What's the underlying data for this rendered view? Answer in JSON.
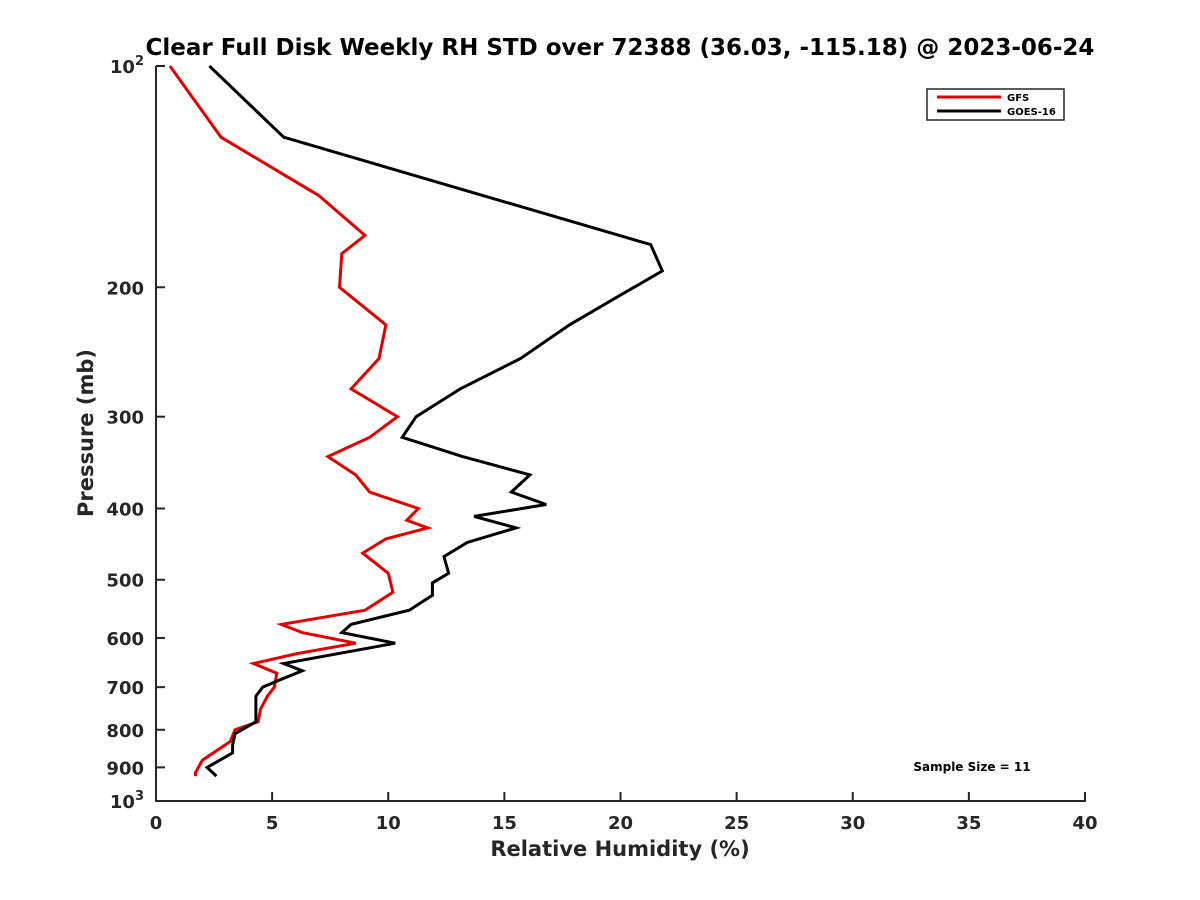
{
  "chart_data": {
    "type": "line",
    "title": "Clear Full Disk Weekly RH STD over 72388 (36.03, -115.18) @ 2023-06-24",
    "xlabel": "Relative Humidity (%)",
    "ylabel": "Pressure (mb)",
    "xlim": [
      0,
      40
    ],
    "ylim": [
      100,
      1000
    ],
    "y_scale": "log",
    "y_reversed": true,
    "grid": false,
    "legend_position": "top-right",
    "x_ticks": [
      "0",
      "5",
      "10",
      "15",
      "20",
      "25",
      "30",
      "35",
      "40"
    ],
    "y_ticks": [
      {
        "value": 100,
        "base": "10",
        "exp": "2"
      },
      {
        "value": 200,
        "label": "200"
      },
      {
        "value": 300,
        "label": "300"
      },
      {
        "value": 400,
        "label": "400"
      },
      {
        "value": 500,
        "label": "500"
      },
      {
        "value": 600,
        "label": "600"
      },
      {
        "value": 700,
        "label": "700"
      },
      {
        "value": 800,
        "label": "800"
      },
      {
        "value": 900,
        "label": "900"
      },
      {
        "value": 1000,
        "base": "10",
        "exp": "3"
      }
    ],
    "annotation": "Sample Size = 11",
    "series": [
      {
        "name": "GFS",
        "color": "#e00000",
        "points": [
          [
            0.6,
            100
          ],
          [
            2.8,
            125
          ],
          [
            7.0,
            150
          ],
          [
            9.0,
            170
          ],
          [
            8.0,
            180
          ],
          [
            7.9,
            200
          ],
          [
            9.9,
            225
          ],
          [
            9.6,
            250
          ],
          [
            8.4,
            275
          ],
          [
            10.4,
            300
          ],
          [
            9.2,
            320
          ],
          [
            7.4,
            340
          ],
          [
            8.6,
            360
          ],
          [
            9.2,
            380
          ],
          [
            11.3,
            400
          ],
          [
            10.8,
            415
          ],
          [
            11.7,
            425
          ],
          [
            9.9,
            440
          ],
          [
            8.9,
            460
          ],
          [
            10.0,
            490
          ],
          [
            10.2,
            520
          ],
          [
            9.0,
            550
          ],
          [
            5.4,
            575
          ],
          [
            6.3,
            590
          ],
          [
            8.6,
            610
          ],
          [
            6.1,
            630
          ],
          [
            4.2,
            650
          ],
          [
            5.2,
            670
          ],
          [
            5.1,
            700
          ],
          [
            4.8,
            720
          ],
          [
            4.5,
            750
          ],
          [
            4.4,
            780
          ],
          [
            3.4,
            800
          ],
          [
            3.2,
            830
          ],
          [
            2.0,
            880
          ],
          [
            1.7,
            915
          ],
          [
            1.7,
            925
          ]
        ]
      },
      {
        "name": "GOES-16",
        "color": "#000000",
        "points": [
          [
            2.3,
            100
          ],
          [
            5.5,
            125
          ],
          [
            21.3,
            175
          ],
          [
            21.8,
            190
          ],
          [
            20.0,
            205
          ],
          [
            17.8,
            225
          ],
          [
            15.7,
            250
          ],
          [
            13.1,
            275
          ],
          [
            11.2,
            300
          ],
          [
            10.6,
            320
          ],
          [
            13.2,
            340
          ],
          [
            16.1,
            360
          ],
          [
            15.3,
            380
          ],
          [
            16.8,
            395
          ],
          [
            13.7,
            410
          ],
          [
            15.5,
            425
          ],
          [
            13.4,
            445
          ],
          [
            12.4,
            465
          ],
          [
            12.6,
            490
          ],
          [
            11.9,
            505
          ],
          [
            11.9,
            525
          ],
          [
            10.9,
            550
          ],
          [
            8.4,
            575
          ],
          [
            8.0,
            590
          ],
          [
            10.3,
            610
          ],
          [
            5.5,
            650
          ],
          [
            6.3,
            665
          ],
          [
            5.3,
            685
          ],
          [
            4.6,
            700
          ],
          [
            4.3,
            720
          ],
          [
            4.3,
            760
          ],
          [
            4.3,
            780
          ],
          [
            3.4,
            810
          ],
          [
            3.3,
            840
          ],
          [
            3.3,
            860
          ],
          [
            2.2,
            900
          ],
          [
            2.6,
            925
          ]
        ]
      }
    ]
  }
}
